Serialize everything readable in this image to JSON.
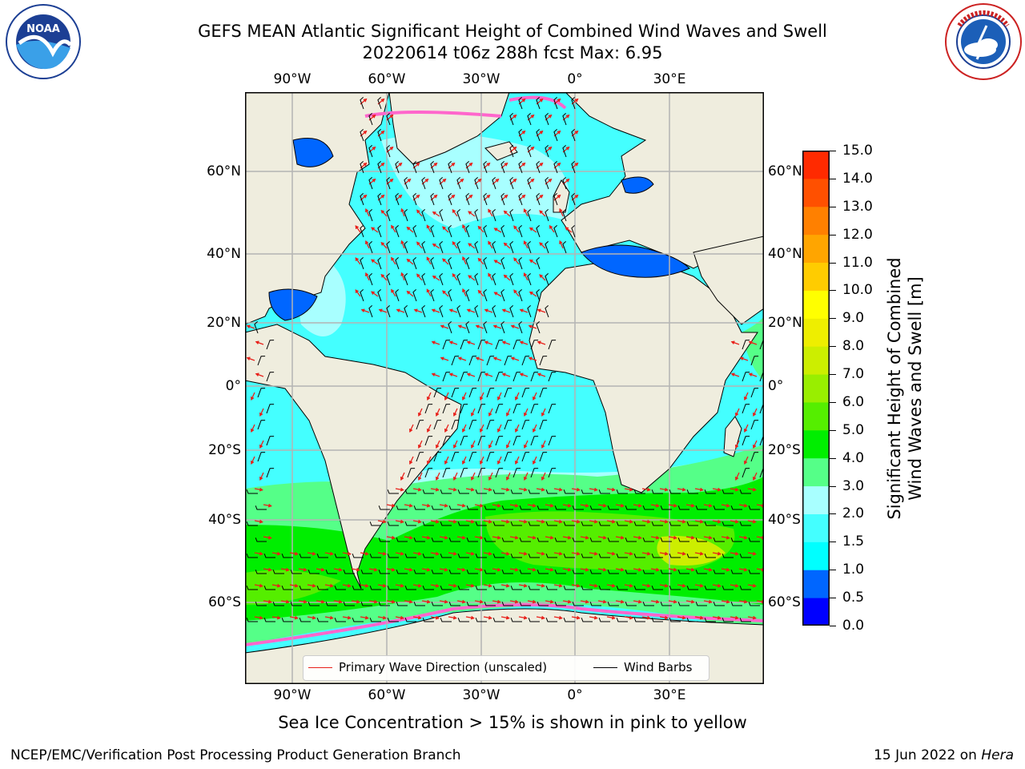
{
  "title": {
    "line1": "GEFS MEAN Atlantic Significant Height of Combined Wind Waves and Swell",
    "line2": "20220614 t06z 288h fcst   Max: 6.95"
  },
  "logos": {
    "noaa": {
      "text": "NOAA",
      "ring_text": "NATIONAL OCEANIC AND ATMOSPHERIC ADMINISTRATION · U.S. DEPARTMENT OF COMMERCE"
    },
    "nws": {
      "ring_text": "NATIONAL WEATHER SERVICE"
    }
  },
  "map": {
    "lon_ticks": [
      "90°W",
      "60°W",
      "30°W",
      "0°",
      "30°E"
    ],
    "lat_ticks": [
      "60°N",
      "40°N",
      "20°N",
      "0°",
      "20°S",
      "40°S",
      "60°S"
    ],
    "legend": {
      "wave_direction": "Primary Wave Direction (unscaled)",
      "wind_barbs": "Wind Barbs",
      "wave_color": "#e8201a",
      "barb_color": "#000000"
    },
    "colors": {
      "land": "#efedde",
      "grid": "#b4b4b4",
      "ice": "#ff66cc"
    }
  },
  "colorbar": {
    "title_line1": "Significant Height of Combined",
    "title_line2": "Wind Waves and Swell [m]",
    "ticks": [
      "0.0",
      "0.5",
      "1.0",
      "1.5",
      "2.0",
      "3.0",
      "4.0",
      "5.0",
      "6.0",
      "7.0",
      "8.0",
      "9.0",
      "10.0",
      "11.0",
      "12.0",
      "13.0",
      "14.0",
      "15.0"
    ],
    "colors": [
      "#0000ff",
      "#0066ff",
      "#00ffff",
      "#44ffff",
      "#a8ffff",
      "#55ff88",
      "#00ee00",
      "#55ee00",
      "#99ee00",
      "#ccee00",
      "#eeee00",
      "#ffff00",
      "#ffcc00",
      "#ffa500",
      "#ff8000",
      "#ff5000",
      "#ff2a00"
    ]
  },
  "footer": {
    "note": "Sea Ice Concentration > 15% is shown in pink to yellow",
    "credit": "NCEP/EMC/Verification Post Processing Product Generation Branch",
    "date_prefix": "15 Jun 2022 on ",
    "machine": "Hera"
  }
}
